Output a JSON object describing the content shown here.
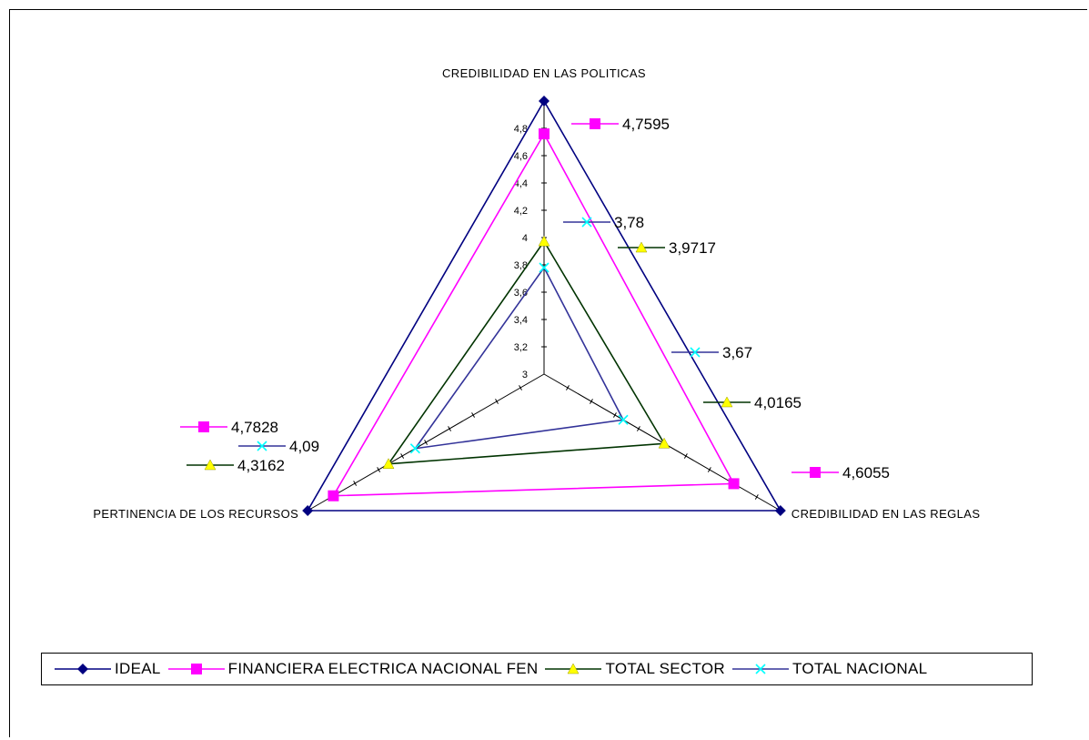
{
  "chart_data": {
    "type": "radar",
    "axes": [
      "CREDIBILIDAD EN LAS POLITICAS",
      "CREDIBILIDAD EN LAS REGLAS",
      "PERTINENCIA DE LOS RECURSOS"
    ],
    "r_min": 3,
    "r_max": 5,
    "tick_values": [
      3,
      3.2,
      3.4,
      3.6,
      3.8,
      4,
      4.2,
      4.4,
      4.6,
      4.8
    ],
    "tick_labels": [
      "3",
      "3,2",
      "3,4",
      "3,6",
      "3,8",
      "4",
      "4,2",
      "4,4",
      "4,6",
      "4,8"
    ],
    "legend_position": "bottom",
    "series": [
      {
        "name": "IDEAL",
        "values": [
          5,
          5,
          5
        ],
        "labels": [
          "",
          "",
          ""
        ],
        "color": "#000080",
        "marker": "diamond"
      },
      {
        "name": "FINANCIERA ELECTRICA NACIONAL FEN",
        "values": [
          4.7595,
          4.6055,
          4.7828
        ],
        "labels": [
          "4,7595",
          "4,6055",
          "4,7828"
        ],
        "color": "#FF00FF",
        "marker": "square"
      },
      {
        "name": "TOTAL SECTOR",
        "values": [
          3.9717,
          4.0165,
          4.3162
        ],
        "labels": [
          "3,9717",
          "4,0165",
          "4,3162"
        ],
        "color": "#FFFF00",
        "line_color": "#003300",
        "marker": "triangle"
      },
      {
        "name": "TOTAL NACIONAL",
        "values": [
          3.78,
          3.67,
          4.09
        ],
        "labels": [
          "3,78",
          "3,67",
          "4,09"
        ],
        "color": "#00FFFF",
        "line_color": "#333399",
        "marker": "x"
      }
    ]
  }
}
